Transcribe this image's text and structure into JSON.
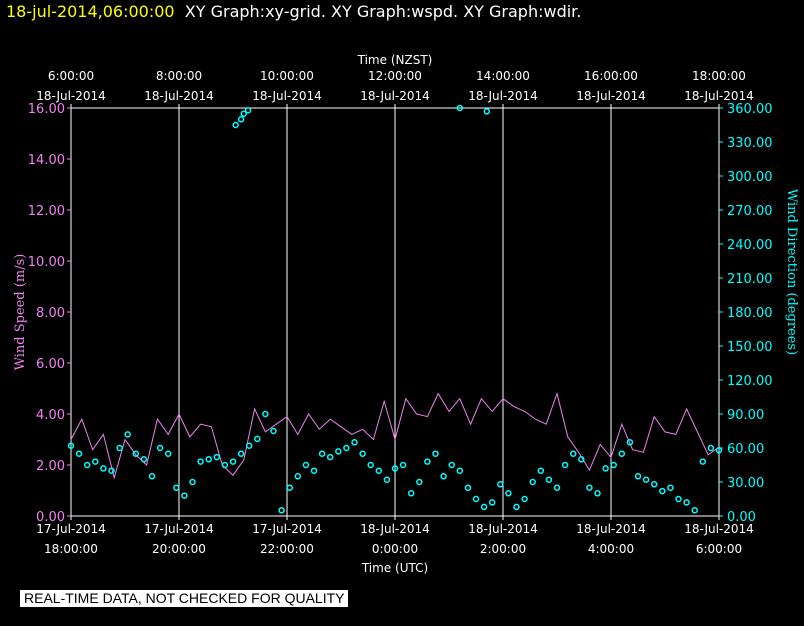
{
  "header": {
    "timestamp": "18-jul-2014,06:00:00",
    "graph_titles": "XY Graph:xy-grid.  XY Graph:wspd.  XY Graph:wdir."
  },
  "footer": {
    "note": "REAL-TIME DATA, NOT CHECKED FOR QUALITY"
  },
  "colors": {
    "wind_speed": "#ee82ee",
    "wind_direction": "#00ffff",
    "grid": "#ffffff",
    "background": "#000000"
  },
  "chart_data": {
    "type": "line",
    "title": "",
    "x_top_label": "Time (NZST)",
    "x_bottom_label": "Time (UTC)",
    "y_left_label": "Wind Speed (m/s)",
    "y_right_label": "Wind Direction (degrees)",
    "x_hours_range": [
      0,
      12
    ],
    "top_ticks": [
      {
        "h": 0,
        "time": "6:00:00",
        "date": "18-Jul-2014"
      },
      {
        "h": 2,
        "time": "8:00:00",
        "date": "18-Jul-2014"
      },
      {
        "h": 4,
        "time": "10:00:00",
        "date": "18-Jul-2014"
      },
      {
        "h": 6,
        "time": "12:00:00",
        "date": "18-Jul-2014"
      },
      {
        "h": 8,
        "time": "14:00:00",
        "date": "18-Jul-2014"
      },
      {
        "h": 10,
        "time": "16:00:00",
        "date": "18-Jul-2014"
      },
      {
        "h": 12,
        "time": "18:00:00",
        "date": "18-Jul-2014"
      }
    ],
    "bottom_ticks": [
      {
        "h": 0,
        "date": "17-Jul-2014",
        "time": "18:00:00"
      },
      {
        "h": 2,
        "date": "17-Jul-2014",
        "time": "20:00:00"
      },
      {
        "h": 4,
        "date": "17-Jul-2014",
        "time": "22:00:00"
      },
      {
        "h": 6,
        "date": "18-Jul-2014",
        "time": "0:00:00"
      },
      {
        "h": 8,
        "date": "18-Jul-2014",
        "time": "2:00:00"
      },
      {
        "h": 10,
        "date": "18-Jul-2014",
        "time": "4:00:00"
      },
      {
        "h": 12,
        "date": "18-Jul-2014",
        "time": "6:00:00"
      }
    ],
    "y_left": {
      "min": 0,
      "max": 16,
      "ticks": [
        "0.00",
        "2.00",
        "4.00",
        "6.00",
        "8.00",
        "10.00",
        "12.00",
        "14.00",
        "16.00"
      ]
    },
    "y_right": {
      "min": 0,
      "max": 360,
      "ticks": [
        "0.00",
        "30.00",
        "60.00",
        "90.00",
        "120.00",
        "150.00",
        "180.00",
        "210.00",
        "240.00",
        "270.00",
        "300.00",
        "330.00",
        "360.00"
      ]
    },
    "series": [
      {
        "name": "Wind Speed (m/s)",
        "axis": "left",
        "x": [
          0,
          0.2,
          0.4,
          0.6,
          0.8,
          1.0,
          1.2,
          1.4,
          1.6,
          1.8,
          2.0,
          2.2,
          2.4,
          2.6,
          2.8,
          3.0,
          3.2,
          3.4,
          3.6,
          3.8,
          4.0,
          4.2,
          4.4,
          4.6,
          4.8,
          5.0,
          5.2,
          5.4,
          5.6,
          5.8,
          6.0,
          6.2,
          6.4,
          6.6,
          6.8,
          7.0,
          7.2,
          7.4,
          7.6,
          7.8,
          8.0,
          8.2,
          8.4,
          8.6,
          8.8,
          9.0,
          9.2,
          9.4,
          9.6,
          9.8,
          10.0,
          10.2,
          10.4,
          10.6,
          10.8,
          11.0,
          11.2,
          11.4,
          11.6,
          11.8,
          12.0
        ],
        "values": [
          3.0,
          3.8,
          2.6,
          3.2,
          1.5,
          3.0,
          2.4,
          2.0,
          3.8,
          3.2,
          4.0,
          3.1,
          3.6,
          3.5,
          2.0,
          1.6,
          2.2,
          4.2,
          3.3,
          3.6,
          3.9,
          3.2,
          4.0,
          3.4,
          3.8,
          3.5,
          3.2,
          3.4,
          3.0,
          4.5,
          3.0,
          4.6,
          4.0,
          3.9,
          4.8,
          4.1,
          4.6,
          3.6,
          4.6,
          4.1,
          4.6,
          4.3,
          4.1,
          3.8,
          3.6,
          4.8,
          3.1,
          2.5,
          1.8,
          2.8,
          2.3,
          3.6,
          2.6,
          2.5,
          3.9,
          3.3,
          3.2,
          4.2,
          3.3,
          2.4,
          2.7
        ]
      },
      {
        "name": "Wind Direction (degrees)",
        "axis": "right",
        "x": [
          0,
          0.15,
          0.3,
          0.45,
          0.6,
          0.75,
          0.9,
          1.05,
          1.2,
          1.35,
          1.5,
          1.65,
          1.8,
          1.95,
          2.1,
          2.25,
          2.4,
          2.55,
          2.7,
          2.85,
          3.0,
          3.15,
          3.3,
          3.45,
          3.6,
          3.75,
          3.9,
          4.05,
          4.2,
          4.35,
          4.5,
          4.65,
          4.8,
          4.95,
          5.1,
          5.25,
          5.4,
          5.55,
          5.7,
          5.85,
          6.0,
          6.15,
          6.3,
          6.45,
          6.6,
          6.75,
          6.9,
          7.05,
          7.2,
          7.35,
          7.5,
          7.65,
          7.8,
          7.95,
          8.1,
          8.25,
          8.4,
          8.55,
          8.7,
          8.85,
          9.0,
          9.15,
          9.3,
          9.45,
          9.6,
          9.75,
          9.9,
          10.05,
          10.2,
          10.35,
          10.5,
          10.65,
          10.8,
          10.95,
          11.1,
          11.25,
          11.4,
          11.55,
          11.7,
          11.85,
          12.0,
          3.05,
          3.15,
          3.2,
          3.28,
          7.2,
          7.7
        ],
        "values": [
          62,
          55,
          45,
          48,
          42,
          40,
          60,
          72,
          55,
          50,
          35,
          60,
          55,
          25,
          18,
          30,
          48,
          50,
          52,
          45,
          48,
          55,
          62,
          68,
          90,
          75,
          5,
          25,
          35,
          45,
          40,
          55,
          52,
          57,
          60,
          65,
          55,
          45,
          40,
          32,
          42,
          45,
          20,
          30,
          48,
          55,
          35,
          45,
          40,
          25,
          15,
          8,
          12,
          28,
          20,
          8,
          15,
          30,
          40,
          32,
          25,
          45,
          55,
          50,
          25,
          20,
          42,
          45,
          55,
          65,
          35,
          32,
          28,
          22,
          25,
          15,
          12,
          5,
          48,
          60,
          58,
          345,
          350,
          355,
          358,
          360,
          357
        ]
      }
    ]
  }
}
